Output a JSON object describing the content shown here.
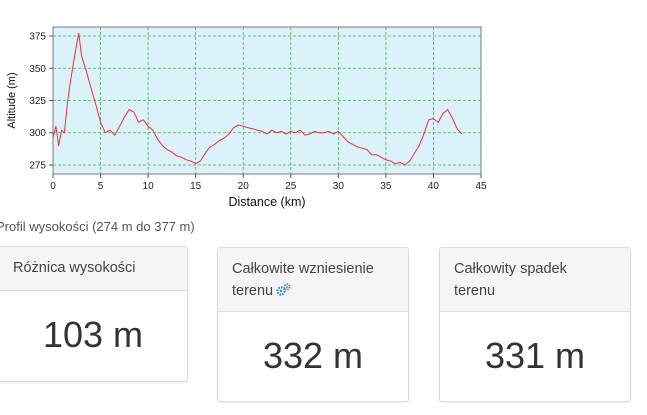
{
  "chart_data": {
    "type": "line",
    "xlabel": "Distance (km)",
    "ylabel": "Altitude (m)",
    "xlim": [
      0,
      45
    ],
    "ylim": [
      268,
      382
    ],
    "x_ticks": [
      0,
      5,
      10,
      15,
      20,
      25,
      30,
      35,
      40,
      45
    ],
    "y_ticks": [
      275,
      300,
      325,
      350,
      375
    ],
    "grid": true,
    "background": "#dcf2fb",
    "line_color": "#e8313a",
    "series": [
      {
        "x": [
          0,
          0.3,
          0.6,
          0.9,
          1.2,
          1.5,
          1.8,
          2.1,
          2.4,
          2.7,
          2.8,
          3.0,
          3.2,
          3.5,
          3.8,
          4.1,
          4.5,
          5.0,
          5.5,
          6.0,
          6.5,
          7.0,
          7.5,
          8.0,
          8.5,
          9.0,
          9.5,
          10.0,
          10.5,
          11.0,
          11.5,
          12.0,
          12.5,
          13.0,
          13.5,
          14.0,
          14.5,
          15.0,
          15.5,
          16.0,
          16.5,
          17.0,
          17.5,
          18.0,
          18.5,
          19.0,
          19.5,
          20.0,
          20.5,
          21.0,
          21.5,
          22.0,
          22.5,
          23.0,
          23.5,
          24.0,
          24.5,
          25.0,
          25.5,
          26.0,
          26.5,
          27.0,
          27.5,
          28.0,
          28.5,
          29.0,
          29.5,
          30.0,
          30.5,
          31.0,
          31.5,
          32.0,
          32.5,
          33.0,
          33.5,
          34.0,
          34.5,
          35.0,
          35.5,
          36.0,
          36.5,
          37.0,
          37.5,
          38.0,
          38.5,
          39.0,
          39.5,
          40.0,
          40.5,
          41.0,
          41.5,
          42.0,
          42.5,
          43.0
        ],
        "y": [
          296,
          305,
          290,
          302,
          300,
          322,
          338,
          352,
          365,
          377,
          372,
          360,
          355,
          348,
          340,
          332,
          322,
          308,
          300,
          302,
          298,
          305,
          312,
          318,
          316,
          308,
          310,
          305,
          302,
          295,
          290,
          287,
          285,
          282,
          281,
          279,
          278,
          276,
          278,
          284,
          289,
          291,
          294,
          296,
          299,
          304,
          306,
          305,
          304,
          303,
          302,
          301,
          299,
          302,
          300,
          301,
          299,
          301,
          300,
          302,
          298,
          299,
          301,
          300,
          300,
          301,
          299,
          301,
          297,
          293,
          291,
          289,
          288,
          287,
          283,
          283,
          281,
          279,
          278,
          276,
          277,
          275,
          278,
          284,
          290,
          299,
          310,
          311,
          308,
          315,
          318,
          311,
          303,
          299
        ]
      }
    ]
  },
  "caption": "Profil wysokości (274 m do 377 m)",
  "stats": [
    {
      "label": "Różnica wysokości",
      "value": "103 m"
    },
    {
      "label_line1": "Całkowite wzniesienie",
      "label_line2": "terenu",
      "value": "332 m"
    },
    {
      "label_line1": "Całkowity spadek",
      "label_line2": "terenu",
      "value": "331 m"
    }
  ],
  "icons": {
    "gear": "gears-icon",
    "gear_color": "#2a8fd6"
  }
}
